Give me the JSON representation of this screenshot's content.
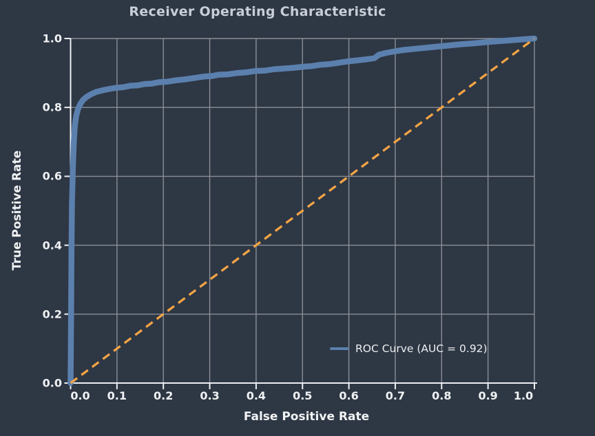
{
  "title": "Receiver Operating Characteristic",
  "axes": {
    "x_label": "False Positive Rate",
    "y_label": "True Positive Rate",
    "x_tick_labels": [
      "0.0",
      "0.1",
      "0.2",
      "0.3",
      "0.4",
      "0.5",
      "0.6",
      "0.7",
      "0.8",
      "0.9",
      "1.0"
    ],
    "y_tick_labels": [
      "0.0",
      "0.2",
      "0.4",
      "0.6",
      "0.8",
      "1.0"
    ]
  },
  "legend": {
    "label": "ROC Curve (AUC = 0.92)"
  },
  "colors": {
    "background": "#2e3744",
    "grid": "#8b8f96",
    "spine": "#eef0f3",
    "tick_text": "#f0f2f4",
    "title_text": "#c9cfd8",
    "roc_curve": "#5b80ae",
    "diagonal": "#f4a445"
  },
  "chart_data": {
    "type": "line",
    "title": "Receiver Operating Characteristic",
    "xlabel": "False Positive Rate",
    "ylabel": "True Positive Rate",
    "xlim": [
      0,
      1
    ],
    "ylim": [
      0,
      1
    ],
    "grid": true,
    "legend_position": "lower right",
    "x_tick_values": [
      0,
      0.1,
      0.2,
      0.3,
      0.4,
      0.5,
      0.6,
      0.7,
      0.8,
      0.9,
      1.0
    ],
    "y_tick_values": [
      0,
      0.2,
      0.4,
      0.6,
      0.8,
      1.0
    ],
    "auc": 0.92,
    "series": [
      {
        "name": "ROC Curve (AUC = 0.92)",
        "color": "#5b80ae",
        "style": "solid",
        "points": [
          [
            0,
            0
          ],
          [
            0.001,
            0.18
          ],
          [
            0.002,
            0.38
          ],
          [
            0.003,
            0.52
          ],
          [
            0.005,
            0.63
          ],
          [
            0.007,
            0.7
          ],
          [
            0.009,
            0.745
          ],
          [
            0.012,
            0.775
          ],
          [
            0.016,
            0.795
          ],
          [
            0.021,
            0.81
          ],
          [
            0.027,
            0.822
          ],
          [
            0.035,
            0.831
          ],
          [
            0.045,
            0.839
          ],
          [
            0.055,
            0.845
          ],
          [
            0.07,
            0.85
          ],
          [
            0.085,
            0.854
          ],
          [
            0.1,
            0.857
          ],
          [
            0.115,
            0.859
          ],
          [
            0.13,
            0.863
          ],
          [
            0.145,
            0.864
          ],
          [
            0.16,
            0.868
          ],
          [
            0.175,
            0.869
          ],
          [
            0.19,
            0.873
          ],
          [
            0.21,
            0.875
          ],
          [
            0.23,
            0.879
          ],
          [
            0.25,
            0.882
          ],
          [
            0.27,
            0.886
          ],
          [
            0.29,
            0.89
          ],
          [
            0.305,
            0.891
          ],
          [
            0.32,
            0.895
          ],
          [
            0.34,
            0.896
          ],
          [
            0.36,
            0.9
          ],
          [
            0.38,
            0.902
          ],
          [
            0.4,
            0.906
          ],
          [
            0.42,
            0.907
          ],
          [
            0.44,
            0.911
          ],
          [
            0.46,
            0.913
          ],
          [
            0.48,
            0.915
          ],
          [
            0.5,
            0.918
          ],
          [
            0.52,
            0.92
          ],
          [
            0.54,
            0.924
          ],
          [
            0.56,
            0.926
          ],
          [
            0.58,
            0.93
          ],
          [
            0.6,
            0.934
          ],
          [
            0.62,
            0.937
          ],
          [
            0.64,
            0.94
          ],
          [
            0.655,
            0.943
          ],
          [
            0.665,
            0.953
          ],
          [
            0.68,
            0.958
          ],
          [
            0.7,
            0.963
          ],
          [
            0.72,
            0.967
          ],
          [
            0.75,
            0.971
          ],
          [
            0.78,
            0.975
          ],
          [
            0.81,
            0.979
          ],
          [
            0.84,
            0.983
          ],
          [
            0.87,
            0.986
          ],
          [
            0.9,
            0.99
          ],
          [
            0.93,
            0.993
          ],
          [
            0.96,
            0.996
          ],
          [
            0.98,
            0.998
          ],
          [
            1,
            1
          ]
        ]
      },
      {
        "name": "chance-diagonal",
        "color": "#f4a445",
        "style": "dashed",
        "points": [
          [
            0,
            0
          ],
          [
            1,
            1
          ]
        ]
      }
    ]
  }
}
